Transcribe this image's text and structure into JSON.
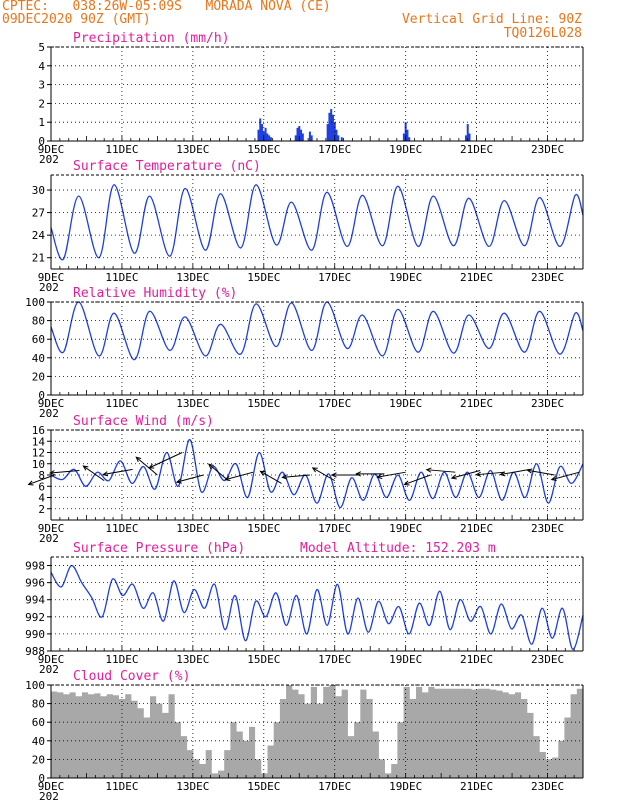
{
  "header": {
    "line1_left": "CPTEC:   038:26W-05:09S   MORADA NOVA (CE)",
    "line2_left": "09DEC2020 90Z (GMT)",
    "line1_right": "Vertical Grid Line: 90Z",
    "line2_right": "TQ0126L028"
  },
  "colors": {
    "header": "#e8761b",
    "title": "#e0209a",
    "line": "#1f3fe0",
    "cloud": "#a8a8a8",
    "grid": "#000000"
  },
  "x_axis": {
    "labels": [
      "9DEC",
      "11DEC",
      "13DEC",
      "15DEC",
      "17DEC",
      "19DEC",
      "21DEC",
      "23DEC"
    ],
    "label_days": [
      9,
      11,
      13,
      15,
      17,
      19,
      21,
      23
    ],
    "range": [
      9,
      24
    ]
  },
  "chart_data": [
    {
      "id": "precip",
      "type": "bar",
      "title": "Precipitation (mm/h)",
      "ylim": [
        0,
        5
      ],
      "yticks": [
        "0",
        "1",
        "2",
        "3",
        "4",
        "5"
      ],
      "year_label": "202",
      "bars": [
        {
          "x": 14.85,
          "y": 0.6
        },
        {
          "x": 14.9,
          "y": 1.2
        },
        {
          "x": 14.95,
          "y": 0.9
        },
        {
          "x": 15.0,
          "y": 0.5
        },
        {
          "x": 15.05,
          "y": 0.7
        },
        {
          "x": 15.1,
          "y": 0.4
        },
        {
          "x": 15.15,
          "y": 0.3
        },
        {
          "x": 15.2,
          "y": 0.2
        },
        {
          "x": 15.9,
          "y": 0.3
        },
        {
          "x": 15.95,
          "y": 0.7
        },
        {
          "x": 16.0,
          "y": 0.8
        },
        {
          "x": 16.05,
          "y": 0.6
        },
        {
          "x": 16.1,
          "y": 0.4
        },
        {
          "x": 16.3,
          "y": 0.5
        },
        {
          "x": 16.35,
          "y": 0.3
        },
        {
          "x": 16.8,
          "y": 0.9
        },
        {
          "x": 16.85,
          "y": 1.5
        },
        {
          "x": 16.9,
          "y": 1.7
        },
        {
          "x": 16.95,
          "y": 1.4
        },
        {
          "x": 17.0,
          "y": 1.0
        },
        {
          "x": 17.05,
          "y": 0.6
        },
        {
          "x": 17.1,
          "y": 0.3
        },
        {
          "x": 17.2,
          "y": 0.2
        },
        {
          "x": 18.95,
          "y": 0.4
        },
        {
          "x": 19.0,
          "y": 1.0
        },
        {
          "x": 19.05,
          "y": 0.6
        },
        {
          "x": 19.1,
          "y": 0.2
        },
        {
          "x": 20.7,
          "y": 0.3
        },
        {
          "x": 20.75,
          "y": 0.9
        },
        {
          "x": 20.8,
          "y": 0.4
        }
      ]
    },
    {
      "id": "temp",
      "type": "line",
      "title": "Surface Temperature (nC)",
      "ylim": [
        19.5,
        32
      ],
      "yticks": [
        "21",
        "24",
        "27",
        "30"
      ],
      "ytick_values": [
        21,
        24,
        27,
        30
      ],
      "year_label": "202",
      "daily_min": [
        20.8,
        21.0,
        21.6,
        21.2,
        22.0,
        22.3,
        22.7,
        22.0,
        22.5,
        22.6,
        22.5,
        22.6,
        22.5,
        22.6,
        22.5,
        24.0
      ],
      "daily_max": [
        29.2,
        30.7,
        29.2,
        30.2,
        29.5,
        30.7,
        28.4,
        29.7,
        29.3,
        30.5,
        29.2,
        28.9,
        28.6,
        29.0,
        29.3,
        29.3
      ]
    },
    {
      "id": "rh",
      "type": "line",
      "title": "Relative Humidity (%)",
      "ylim": [
        0,
        100
      ],
      "yticks": [
        "0",
        "20",
        "40",
        "60",
        "80",
        "100"
      ],
      "ytick_values": [
        0,
        20,
        40,
        60,
        80,
        100
      ],
      "year_label": "202",
      "daily_min": [
        46,
        42,
        38,
        48,
        42,
        44,
        52,
        48,
        50,
        42,
        46,
        45,
        50,
        46,
        44,
        48
      ],
      "daily_max": [
        100,
        88,
        90,
        84,
        76,
        98,
        99,
        100,
        86,
        92,
        90,
        86,
        88,
        90,
        88,
        90
      ]
    },
    {
      "id": "wind",
      "type": "line",
      "title": "Surface Wind (m/s)",
      "ylim": [
        0,
        16
      ],
      "yticks": [
        "2",
        "4",
        "6",
        "8",
        "10",
        "12",
        "14",
        "16"
      ],
      "ytick_values": [
        2,
        4,
        6,
        8,
        10,
        12,
        14,
        16
      ],
      "year_label": "202",
      "speed": [
        8.0,
        7.2,
        9.0,
        6.0,
        8.5,
        7.0,
        10.5,
        6.5,
        9.5,
        5.5,
        12.0,
        6.0,
        14.3,
        5.0,
        9.5,
        7.0,
        10.0,
        4.0,
        12.0,
        5.0,
        8.5,
        4.5,
        8.0,
        3.0,
        8.2,
        2.2,
        7.5,
        3.5,
        8.2,
        4.0,
        8.0,
        3.5,
        8.5,
        3.8,
        8.5,
        4.0,
        8.5,
        4.0,
        8.8,
        3.5,
        8.5,
        4.0,
        10.0,
        3.0,
        9.5,
        6.5,
        10.0
      ],
      "arrows": [
        {
          "x": 9.1,
          "speed": 8.0,
          "dir_deg": 200
        },
        {
          "x": 9.8,
          "speed": 8.8,
          "dir_deg": 185
        },
        {
          "x": 10.5,
          "speed": 7.0,
          "dir_deg": 145
        },
        {
          "x": 11.3,
          "speed": 9.0,
          "dir_deg": 190
        },
        {
          "x": 12.0,
          "speed": 8.0,
          "dir_deg": 140
        },
        {
          "x": 12.7,
          "speed": 12.0,
          "dir_deg": 205
        },
        {
          "x": 13.3,
          "speed": 8.0,
          "dir_deg": 195
        },
        {
          "x": 14.0,
          "speed": 7.0,
          "dir_deg": 140
        },
        {
          "x": 14.7,
          "speed": 8.5,
          "dir_deg": 195
        },
        {
          "x": 15.5,
          "speed": 6.5,
          "dir_deg": 150
        },
        {
          "x": 16.3,
          "speed": 8.0,
          "dir_deg": 185
        },
        {
          "x": 17.0,
          "speed": 7.0,
          "dir_deg": 150
        },
        {
          "x": 17.7,
          "speed": 8.0,
          "dir_deg": 180
        },
        {
          "x": 18.4,
          "speed": 8.2,
          "dir_deg": 180
        },
        {
          "x": 19.0,
          "speed": 8.5,
          "dir_deg": 190
        },
        {
          "x": 19.7,
          "speed": 8.0,
          "dir_deg": 200
        },
        {
          "x": 20.4,
          "speed": 8.5,
          "dir_deg": 175
        },
        {
          "x": 21.1,
          "speed": 8.8,
          "dir_deg": 195
        },
        {
          "x": 21.8,
          "speed": 8.5,
          "dir_deg": 185
        },
        {
          "x": 22.5,
          "speed": 9.0,
          "dir_deg": 190
        },
        {
          "x": 23.2,
          "speed": 8.0,
          "dir_deg": 170
        },
        {
          "x": 23.9,
          "speed": 8.5,
          "dir_deg": 195
        }
      ]
    },
    {
      "id": "pressure",
      "type": "line",
      "title": "Surface Pressure (hPa)",
      "annotation": "Model Altitude: 152.203 m",
      "ylim": [
        988,
        999
      ],
      "yticks": [
        "988",
        "990",
        "992",
        "994",
        "996",
        "998"
      ],
      "ytick_values": [
        988,
        990,
        992,
        994,
        996,
        998
      ],
      "year_label": "202",
      "values": [
        997.2,
        995.5,
        998.0,
        996.0,
        994.2,
        992.0,
        996.4,
        994.5,
        995.8,
        993.0,
        994.8,
        991.5,
        996.2,
        992.5,
        995.2,
        993.0,
        995.8,
        990.5,
        994.5,
        989.2,
        993.8,
        992.0,
        994.8,
        991.0,
        994.5,
        990.0,
        995.2,
        991.0,
        995.8,
        990.0,
        994.2,
        990.2,
        993.8,
        991.2,
        993.2,
        990.0,
        993.6,
        991.0,
        995.0,
        990.5,
        994.0,
        991.5,
        993.2,
        990.0,
        993.5,
        990.6,
        992.2,
        988.8,
        993.0,
        989.5,
        993.0,
        988.2,
        992.2
      ]
    },
    {
      "id": "cloud",
      "type": "area",
      "title": "Cloud Cover (%)",
      "ylim": [
        0,
        100
      ],
      "yticks": [
        "0",
        "20",
        "40",
        "60",
        "80",
        "100"
      ],
      "ytick_values": [
        0,
        20,
        40,
        60,
        80,
        100
      ],
      "year_label": "202",
      "values": [
        93,
        92,
        90,
        92,
        88,
        92,
        90,
        91,
        88,
        90,
        89,
        85,
        90,
        83,
        75,
        65,
        88,
        80,
        70,
        90,
        60,
        45,
        30,
        20,
        15,
        30,
        5,
        8,
        30,
        60,
        50,
        40,
        55,
        20,
        5,
        35,
        60,
        85,
        100,
        95,
        90,
        80,
        98,
        80,
        98,
        100,
        88,
        95,
        45,
        60,
        95,
        85,
        50,
        20,
        5,
        15,
        60,
        98,
        85,
        98,
        92,
        98,
        96,
        96,
        96,
        96,
        96,
        96,
        95,
        96,
        96,
        95,
        94,
        92,
        90,
        92,
        85,
        70,
        45,
        28,
        20,
        22,
        40,
        65,
        90,
        96
      ]
    }
  ]
}
